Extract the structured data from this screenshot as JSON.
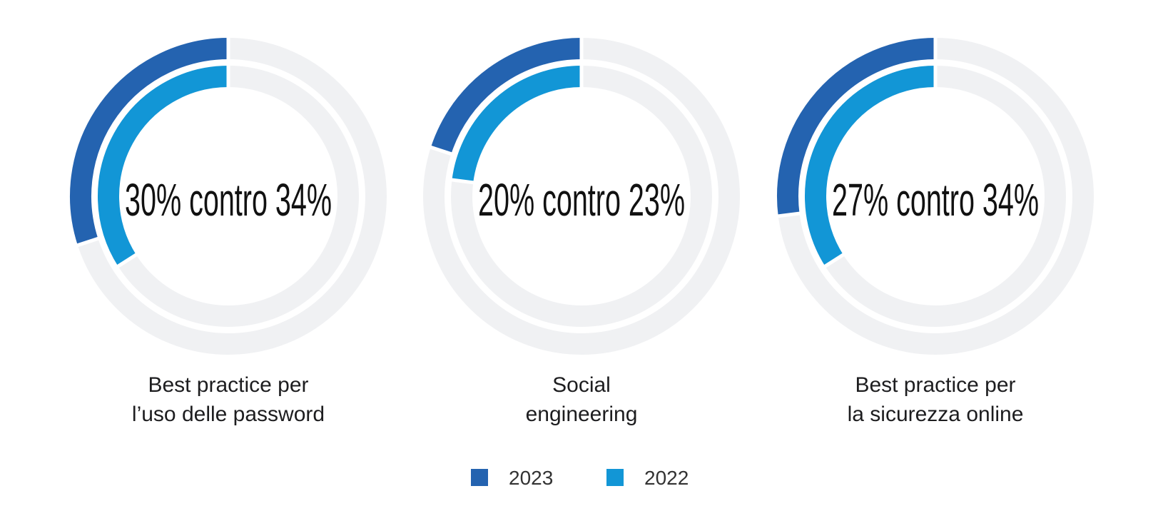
{
  "colors": {
    "series_2023": "#2463b0",
    "series_2022": "#1296d6",
    "track": "#f0f1f3",
    "text": "#1d1d1f"
  },
  "chart_data": [
    {
      "type": "donut",
      "caption_lines": [
        "Best practice per",
        "l’uso delle password"
      ],
      "center_label": "30% contro 34%",
      "series": [
        {
          "name": "2023",
          "value": 30
        },
        {
          "name": "2022",
          "value": 34
        }
      ],
      "unit": "%"
    },
    {
      "type": "donut",
      "caption_lines": [
        "Social",
        "engineering"
      ],
      "center_label": "20% contro 23%",
      "series": [
        {
          "name": "2023",
          "value": 20
        },
        {
          "name": "2022",
          "value": 23
        }
      ],
      "unit": "%"
    },
    {
      "type": "donut",
      "caption_lines": [
        "Best practice per",
        "la sicurezza online"
      ],
      "center_label": "27% contro 34%",
      "series": [
        {
          "name": "2023",
          "value": 27
        },
        {
          "name": "2022",
          "value": 34
        }
      ],
      "unit": "%"
    }
  ],
  "legend": {
    "items": [
      {
        "label": "2023",
        "color": "#2463b0"
      },
      {
        "label": "2022",
        "color": "#1296d6"
      }
    ]
  }
}
